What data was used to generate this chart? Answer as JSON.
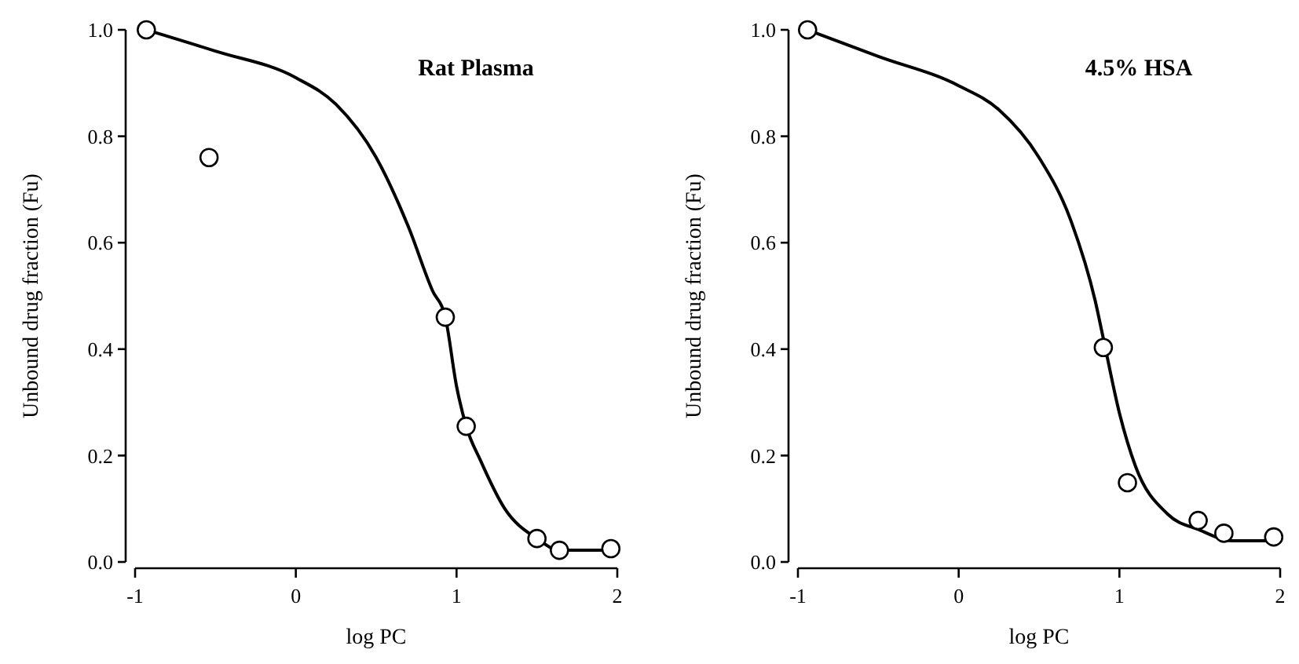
{
  "chart_data": [
    {
      "type": "scatter",
      "title": "Rat Plasma",
      "xlabel": "log PC",
      "ylabel": "Unbound drug fraction (Fu)",
      "xlim": [
        -1,
        2
      ],
      "ylim": [
        0,
        1
      ],
      "xticks": [
        -1,
        0,
        1,
        2
      ],
      "yticks": [
        {
          "value": 0,
          "label": "0.0"
        },
        {
          "value": 0.2,
          "label": "0.2"
        },
        {
          "value": 0.4,
          "label": "0.4"
        },
        {
          "value": 0.6,
          "label": "0.6"
        },
        {
          "value": 0.8,
          "label": "0.8"
        },
        {
          "value": 1,
          "label": "1.0"
        }
      ],
      "grid": false,
      "series": [
        {
          "type": "line",
          "color": "#000000",
          "marker": "none",
          "line_style": "solid",
          "x": [
            -0.93,
            -0.5,
            0,
            0.25,
            0.5,
            0.7,
            0.85,
            0.93,
            1.0,
            1.06,
            1.15,
            1.3,
            1.5,
            1.64,
            1.96
          ],
          "values": [
            1.0,
            0.96,
            0.91,
            0.86,
            0.76,
            0.63,
            0.51,
            0.46,
            0.33,
            0.255,
            0.19,
            0.1,
            0.044,
            0.022,
            0.022
          ]
        },
        {
          "color": "#000000",
          "marker": "circle",
          "x": [
            -0.93,
            -0.54,
            0.93,
            1.06,
            1.5,
            1.64,
            1.96
          ],
          "values": [
            1.0,
            0.76,
            0.46,
            0.255,
            0.044,
            0.022,
            0.025
          ]
        }
      ]
    },
    {
      "type": "scatter",
      "title": "4.5% HSA",
      "xlabel": "log PC",
      "ylabel": "Unbound drug fraction (Fu)",
      "xlim": [
        -1,
        2
      ],
      "ylim": [
        0,
        1
      ],
      "xticks": [
        -1,
        0,
        1,
        2
      ],
      "yticks": [
        {
          "value": 0,
          "label": "0.0"
        },
        {
          "value": 0.2,
          "label": "0.2"
        },
        {
          "value": 0.4,
          "label": "0.4"
        },
        {
          "value": 0.6,
          "label": "0.6"
        },
        {
          "value": 0.8,
          "label": "0.8"
        },
        {
          "value": 1,
          "label": "1.0"
        }
      ],
      "grid": false,
      "series": [
        {
          "type": "line",
          "color": "#000000",
          "marker": "none",
          "line_style": "solid",
          "x": [
            -0.94,
            -0.5,
            0,
            0.25,
            0.5,
            0.7,
            0.85,
            0.9,
            1.0,
            1.1,
            1.3,
            1.5,
            1.7,
            1.96
          ],
          "values": [
            1.0,
            0.95,
            0.895,
            0.85,
            0.76,
            0.64,
            0.49,
            0.42,
            0.28,
            0.18,
            0.09,
            0.06,
            0.04,
            0.04
          ]
        },
        {
          "color": "#000000",
          "marker": "circle",
          "x": [
            -0.94,
            0.9,
            1.05,
            1.49,
            1.65,
            1.96
          ],
          "values": [
            1.0,
            0.403,
            0.149,
            0.078,
            0.054,
            0.047
          ]
        }
      ]
    }
  ]
}
